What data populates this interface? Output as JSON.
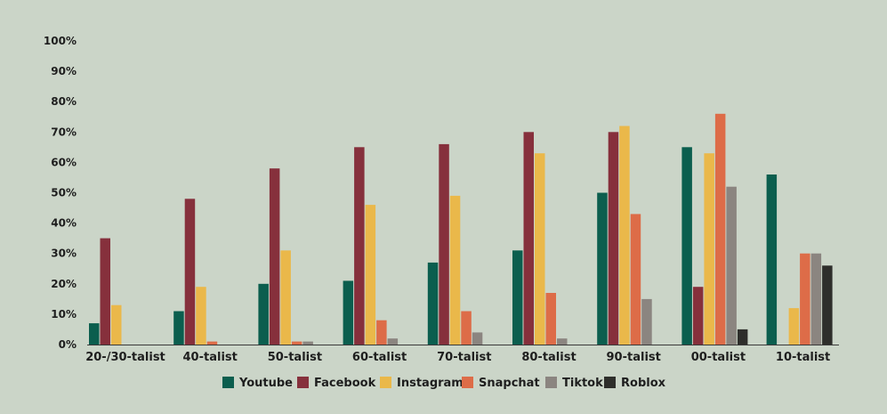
{
  "chart_data": {
    "type": "bar",
    "categories": [
      "20-/30-talist",
      "40-talist",
      "50-talist",
      "60-talist",
      "70-talist",
      "80-talist",
      "90-talist",
      "00-talist",
      "10-talist"
    ],
    "ylim": [
      0,
      100
    ],
    "yticks": [
      "0%",
      "10%",
      "20%",
      "30%",
      "40%",
      "50%",
      "60%",
      "70%",
      "80%",
      "90%",
      "100%"
    ],
    "grid": false,
    "legend_position": "bottom-center",
    "series": [
      {
        "name": "Youtube",
        "color": "#0b5e4e",
        "values": [
          7,
          11,
          20,
          21,
          27,
          31,
          50,
          65,
          56
        ]
      },
      {
        "name": "Facebook",
        "color": "#86303c",
        "values": [
          35,
          48,
          58,
          65,
          66,
          70,
          70,
          19,
          null
        ]
      },
      {
        "name": "Instagram",
        "color": "#eab84a",
        "values": [
          13,
          19,
          31,
          46,
          49,
          63,
          72,
          63,
          12
        ]
      },
      {
        "name": "Snapchat",
        "color": "#dd6c48",
        "values": [
          null,
          1,
          1,
          8,
          11,
          17,
          43,
          76,
          30
        ]
      },
      {
        "name": "Tiktok",
        "color": "#8b8580",
        "values": [
          null,
          null,
          1,
          2,
          4,
          2,
          15,
          52,
          30
        ]
      },
      {
        "name": "Roblox",
        "color": "#2e2e2b",
        "values": [
          null,
          null,
          null,
          null,
          null,
          null,
          null,
          5,
          26
        ]
      }
    ]
  }
}
